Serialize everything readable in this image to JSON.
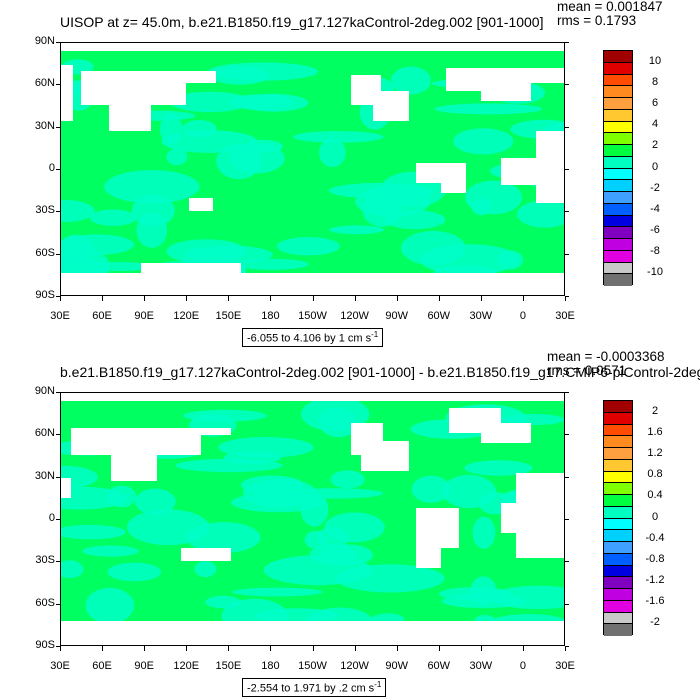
{
  "chart_data": [
    {
      "type": "heatmap",
      "title": "UISOP at z=  45.0m, b.e21.B1850.f19_g17.127kaControl-2deg.002 [901-1000]",
      "stats": {
        "mean": "mean = 0.001847",
        "rms": "rms = 0.1793"
      },
      "range_label": "-6.055 to 4.106 by 1 cm s",
      "range_sup": "-1",
      "x_ticks": [
        "30E",
        "60E",
        "90E",
        "120E",
        "150E",
        "180",
        "150W",
        "120W",
        "90W",
        "60W",
        "30W",
        "0",
        "30E"
      ],
      "y_ticks": [
        "90N",
        "60N",
        "30N",
        "0",
        "30S",
        "60S",
        "90S"
      ],
      "colorbar_labels": [
        "10",
        "8",
        "6",
        "4",
        "2",
        "0",
        "-2",
        "-4",
        "-6",
        "-8",
        "-10"
      ],
      "colorbar_colors": [
        "#a00000",
        "#e00000",
        "#ff4c00",
        "#ff8a20",
        "#ffa040",
        "#ffc830",
        "#ffff00",
        "#80ff00",
        "#00ff40",
        "#00ffc0",
        "#00ffff",
        "#00d0ff",
        "#40a0ff",
        "#0060ff",
        "#0000e0",
        "#8000c0",
        "#c000e0",
        "#e000e0",
        "#c8c8c8",
        "#707070"
      ],
      "fill_color": "#00ff60",
      "land_color": "#ffffff"
    },
    {
      "type": "heatmap",
      "title": "b.e21.B1850.f19_g17.127kaControl-2deg.002 [901-1000] - b.e21.B1850.f19_g17.CMIP6-piControl-2deg.",
      "stats": {
        "mean": "mean = -0.0003368",
        "rms": "rms = 0.0571"
      },
      "range_label": "-2.554 to 1.971 by .2 cm s",
      "range_sup": "-1",
      "x_ticks": [
        "30E",
        "60E",
        "90E",
        "120E",
        "150E",
        "180",
        "150W",
        "120W",
        "90W",
        "60W",
        "30W",
        "0",
        "30E"
      ],
      "y_ticks": [
        "90N",
        "60N",
        "30N",
        "0",
        "30S",
        "60S",
        "90S"
      ],
      "colorbar_labels": [
        "2",
        "1.6",
        "1.2",
        "0.8",
        "0.4",
        "0",
        "-0.4",
        "-0.8",
        "-1.2",
        "-1.6",
        "-2"
      ],
      "colorbar_colors": [
        "#a00000",
        "#e00000",
        "#ff4c00",
        "#ff8a20",
        "#ffa040",
        "#ffc830",
        "#ffff00",
        "#80ff00",
        "#00ff40",
        "#00ffc0",
        "#00ffff",
        "#00d0ff",
        "#40a0ff",
        "#0060ff",
        "#0000e0",
        "#8000c0",
        "#c000e0",
        "#e000e0",
        "#c8c8c8",
        "#707070"
      ],
      "fill_color": "#00ff60",
      "land_color": "#ffffff"
    }
  ]
}
